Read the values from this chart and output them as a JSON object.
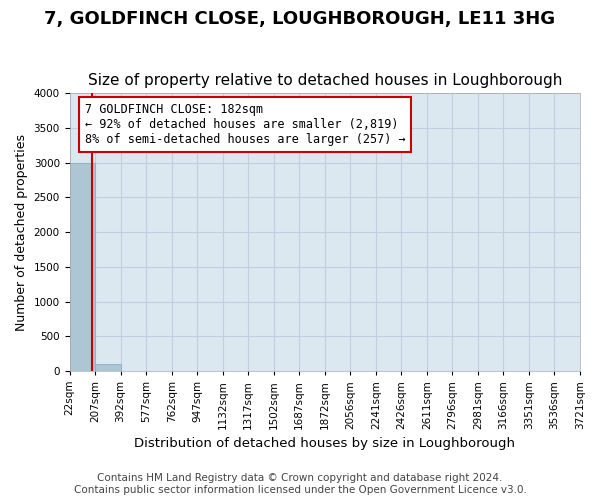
{
  "title": "7, GOLDFINCH CLOSE, LOUGHBOROUGH, LE11 3HG",
  "subtitle": "Size of property relative to detached houses in Loughborough",
  "xlabel": "Distribution of detached houses by size in Loughborough",
  "ylabel": "Number of detached properties",
  "footer_line1": "Contains HM Land Registry data © Crown copyright and database right 2024.",
  "footer_line2": "Contains public sector information licensed under the Open Government Licence v3.0.",
  "tick_labels": [
    "22sqm",
    "207sqm",
    "392sqm",
    "577sqm",
    "762sqm",
    "947sqm",
    "1132sqm",
    "1317sqm",
    "1502sqm",
    "1687sqm",
    "1872sqm",
    "2056sqm",
    "2241sqm",
    "2426sqm",
    "2611sqm",
    "2796sqm",
    "2981sqm",
    "3166sqm",
    "3351sqm",
    "3536sqm",
    "3721sqm"
  ],
  "bar_values": [
    3000,
    100,
    5,
    3,
    2,
    1,
    1,
    0,
    0,
    0,
    0,
    0,
    0,
    0,
    0,
    0,
    0,
    0,
    0,
    0
  ],
  "bar_color": "#aec6d4",
  "bar_edge_color": "#7aafc4",
  "ylim": [
    0,
    4000
  ],
  "yticks": [
    0,
    500,
    1000,
    1500,
    2000,
    2500,
    3000,
    3500,
    4000
  ],
  "property_size_sqm": 182,
  "annotation_line1": "7 GOLDFINCH CLOSE: 182sqm",
  "annotation_line2": "← 92% of detached houses are smaller (2,819)",
  "annotation_line3": "8% of semi-detached houses are larger (257) →",
  "red_line_color": "#cc0000",
  "annotation_box_color": "#cc0000",
  "grid_color": "#c0cfe0",
  "bg_color": "#dce8f0",
  "title_fontsize": 13,
  "subtitle_fontsize": 11,
  "axis_label_fontsize": 9,
  "tick_fontsize": 7.5,
  "annotation_fontsize": 8.5,
  "footer_fontsize": 7.5
}
